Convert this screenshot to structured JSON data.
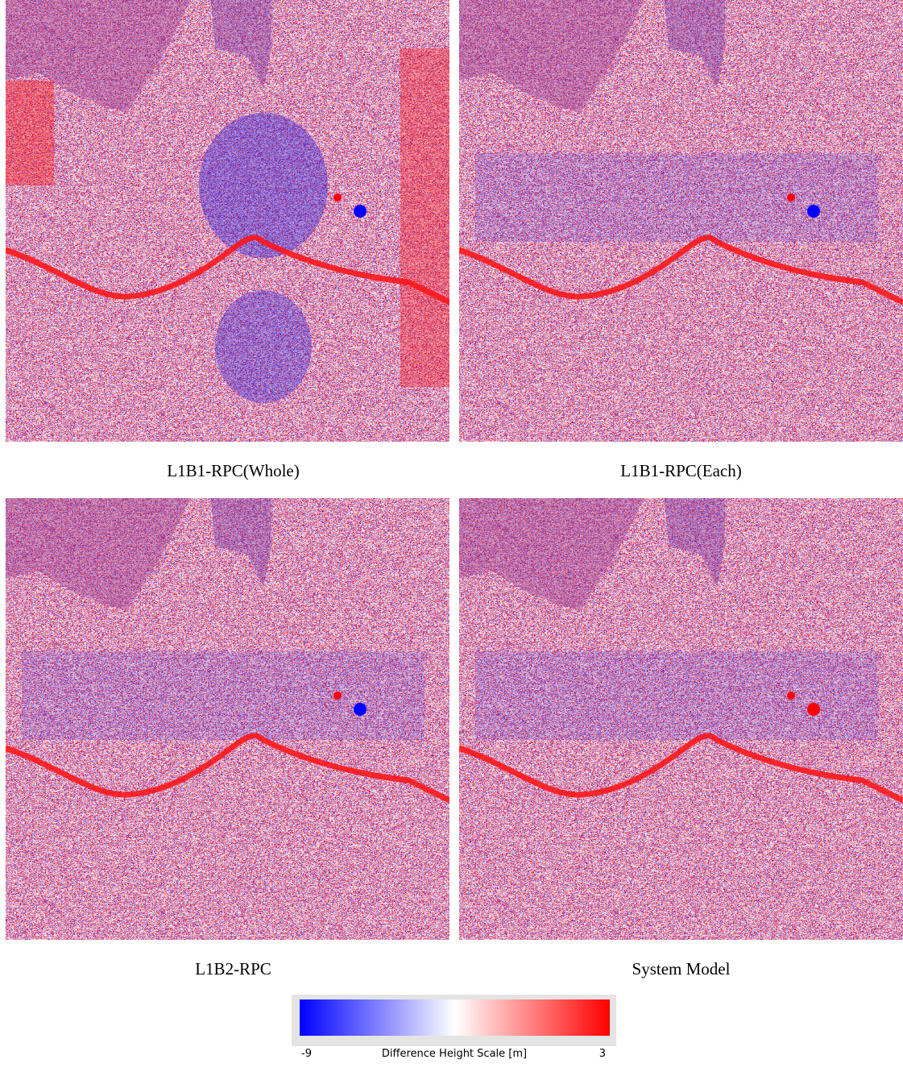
{
  "panels": [
    {
      "caption": "L1B1-RPC(Whole)"
    },
    {
      "caption": "L1B1-RPC(Each)"
    },
    {
      "caption": "L1B2-RPC"
    },
    {
      "caption": "System Model"
    }
  ],
  "colorbar": {
    "label": "Difference Height Scale [m]",
    "min": -9,
    "max": 3
  }
}
